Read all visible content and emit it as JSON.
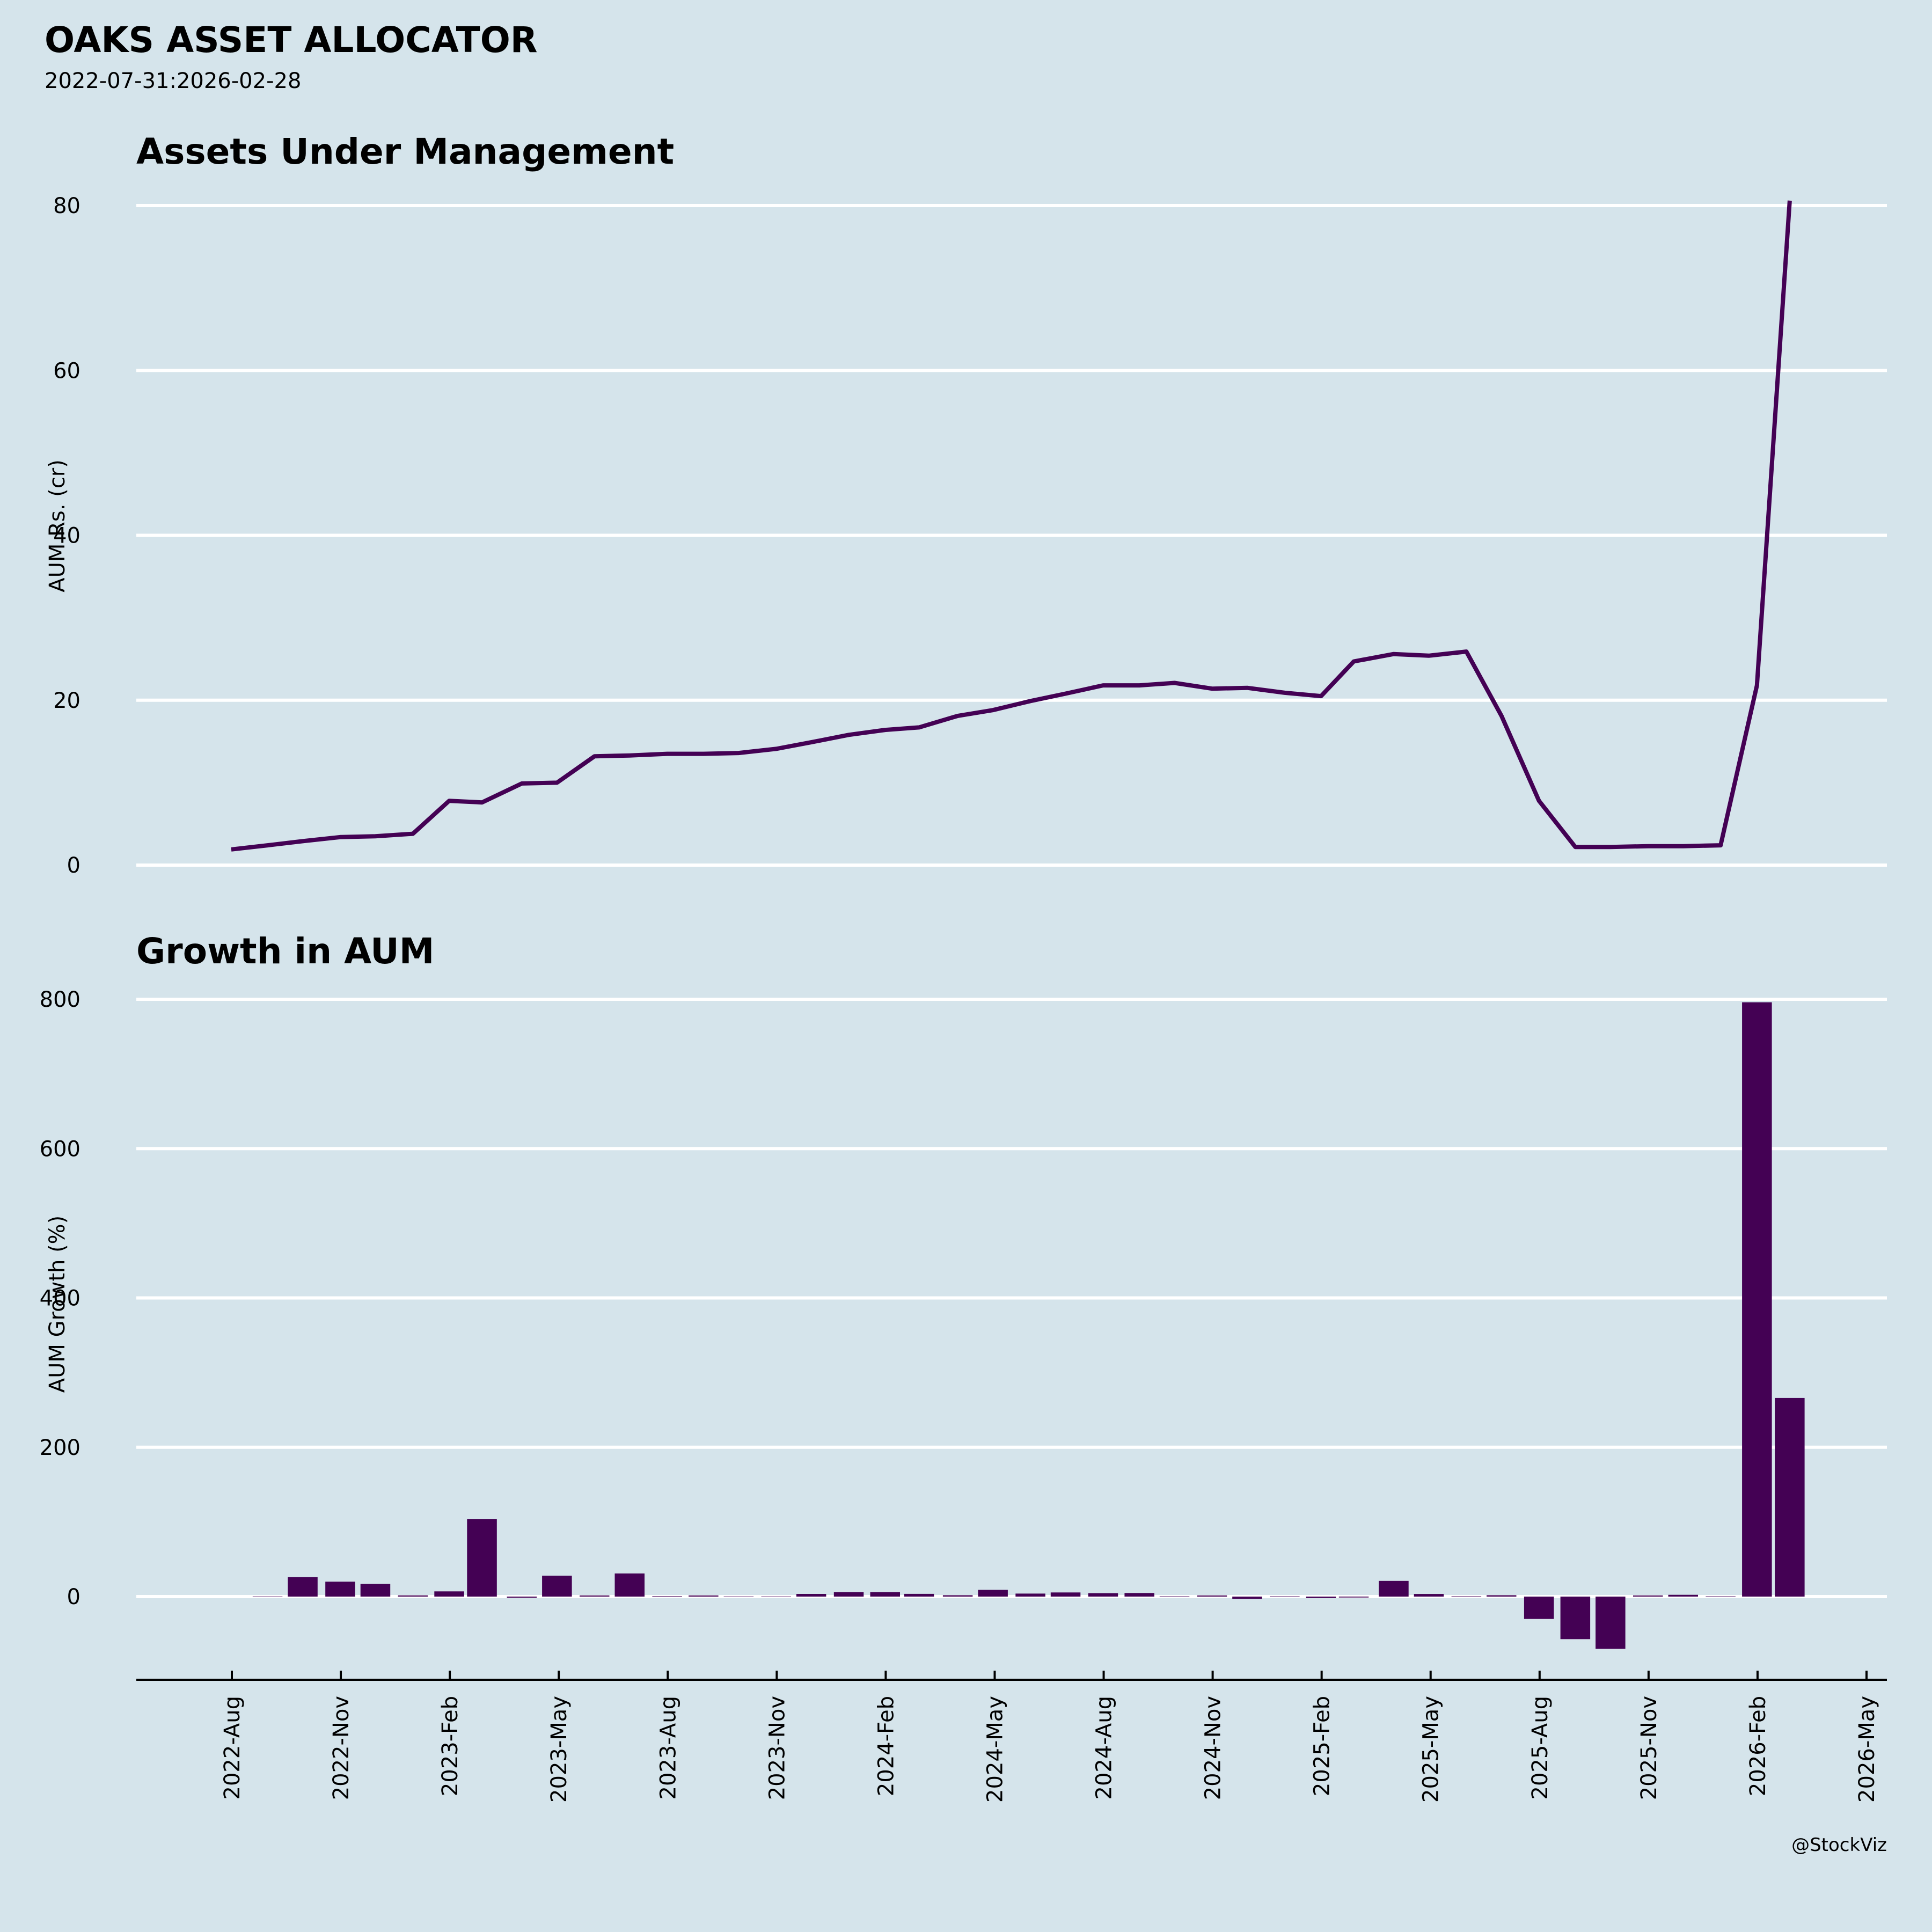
{
  "header": {
    "title": "OAKS ASSET ALLOCATOR",
    "subtitle": "2022-07-31:2026-02-28"
  },
  "footer": {
    "credit": "@StockViz"
  },
  "colors": {
    "background": "#d5e4eb",
    "series": "#440154",
    "grid": "#ffffff"
  },
  "chart_data": [
    {
      "type": "line",
      "title": "Assets Under Management",
      "ylabel": "AUM Rs. (cr)",
      "xlabel": "",
      "ylim": [
        0,
        80
      ],
      "yticks": [
        "0",
        "20",
        "40",
        "60",
        "80"
      ],
      "ytick_values": [
        0,
        20,
        40,
        60,
        80
      ],
      "grid": "horizontal",
      "x": [
        "2022-07-31",
        "2022-08-31",
        "2022-09-30",
        "2022-10-31",
        "2022-11-30",
        "2022-12-31",
        "2023-01-31",
        "2023-02-28",
        "2023-03-31",
        "2023-04-30",
        "2023-05-31",
        "2023-06-30",
        "2023-07-31",
        "2023-08-31",
        "2023-09-30",
        "2023-10-31",
        "2023-11-30",
        "2023-12-31",
        "2024-01-31",
        "2024-02-29",
        "2024-03-31",
        "2024-04-30",
        "2024-05-31",
        "2024-06-30",
        "2024-07-31",
        "2024-08-31",
        "2024-09-30",
        "2024-10-31",
        "2024-11-30",
        "2024-12-31",
        "2025-01-31",
        "2025-02-28",
        "2025-03-31",
        "2025-04-30",
        "2025-05-31",
        "2025-06-30",
        "2025-07-31",
        "2025-08-31",
        "2025-09-30",
        "2025-10-31",
        "2025-11-30",
        "2025-12-31",
        "2026-01-31",
        "2026-02-28"
      ],
      "values": [
        1.9,
        2.4,
        2.9,
        3.4,
        3.5,
        3.8,
        7.8,
        7.6,
        9.9,
        10.0,
        13.2,
        13.3,
        13.5,
        13.5,
        13.6,
        14.1,
        14.9,
        15.8,
        16.4,
        16.7,
        18.1,
        18.8,
        19.9,
        20.8,
        21.8,
        21.8,
        22.1,
        21.4,
        21.5,
        20.9,
        20.5,
        24.7,
        25.6,
        25.4,
        25.9,
        18.1,
        7.8,
        2.2,
        2.2,
        2.3,
        2.3,
        2.4,
        21.8,
        80.6
      ]
    },
    {
      "type": "bar",
      "title": "Growth in AUM",
      "ylabel": "AUM Growth (%)",
      "xlabel": "",
      "ylim": [
        -112,
        800
      ],
      "yticks": [
        "0",
        "200",
        "400",
        "600",
        "800"
      ],
      "ytick_values": [
        0,
        200,
        400,
        600,
        800
      ],
      "grid": "horizontal",
      "x": [
        "2022-08-31",
        "2022-09-30",
        "2022-10-31",
        "2022-11-30",
        "2022-12-31",
        "2023-01-31",
        "2023-02-28",
        "2023-03-31",
        "2023-04-30",
        "2023-05-31",
        "2023-06-30",
        "2023-07-31",
        "2023-08-31",
        "2023-09-30",
        "2023-10-31",
        "2023-11-30",
        "2023-12-31",
        "2024-01-31",
        "2024-02-29",
        "2024-03-31",
        "2024-04-30",
        "2024-05-31",
        "2024-06-30",
        "2024-07-31",
        "2024-08-31",
        "2024-09-30",
        "2024-10-31",
        "2024-11-30",
        "2024-12-31",
        "2025-01-31",
        "2025-02-28",
        "2025-03-31",
        "2025-04-30",
        "2025-05-31",
        "2025-06-30",
        "2025-07-31",
        "2025-08-31",
        "2025-09-30",
        "2025-10-31",
        "2025-11-30",
        "2025-12-31",
        "2026-01-31",
        "2026-02-28"
      ],
      "values": [
        0,
        26,
        20,
        17,
        1.6,
        7,
        104,
        -1.5,
        28,
        1.5,
        31,
        0.5,
        1.5,
        0,
        0,
        3.6,
        6,
        6,
        3.7,
        1.8,
        9,
        4,
        5.5,
        4.6,
        4.8,
        0.2,
        1.5,
        -3,
        0.2,
        -2,
        -1.2,
        21,
        3.5,
        0.3,
        1.8,
        -30,
        -57,
        -70,
        1.5,
        2.4,
        0.2,
        796,
        266
      ],
      "xticks": [
        "2022-Aug",
        "2022-Nov",
        "2023-Feb",
        "2023-May",
        "2023-Aug",
        "2023-Nov",
        "2024-Feb",
        "2024-May",
        "2024-Aug",
        "2024-Nov",
        "2025-Feb",
        "2025-May",
        "2025-Aug",
        "2025-Nov",
        "2026-Feb",
        "2026-May"
      ]
    }
  ]
}
